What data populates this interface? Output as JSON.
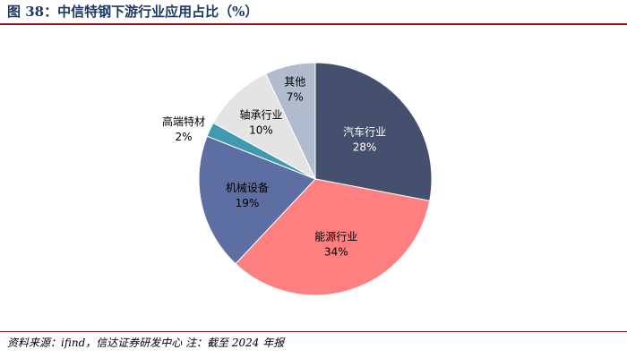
{
  "figure": {
    "title": "图 38：中信特钢下游行业应用占比（%）",
    "source": "资料来源：ifind，信达证券研发中心 注：截至 2024 年报"
  },
  "chart_data": {
    "type": "pie",
    "title": "图 38：中信特钢下游行业应用占比（%）",
    "start": "12 o'clock, clockwise",
    "categories": [
      "汽车行业",
      "能源行业",
      "机械设备",
      "高端特材",
      "轴承行业",
      "其他"
    ],
    "values": [
      28,
      34,
      19,
      2,
      10,
      7
    ],
    "value_labels": [
      "28%",
      "34%",
      "19%",
      "2%",
      "10%",
      "7%"
    ],
    "colors": [
      "#44506e",
      "#fe7f7f",
      "#5d6fa2",
      "#3f9ab0",
      "#e4e4e4",
      "#b0bccd"
    ],
    "label_colors": [
      "#ffffff",
      "#000000",
      "#000000",
      "#000000",
      "#000000",
      "#000000"
    ],
    "grid": false,
    "legend": "none"
  }
}
